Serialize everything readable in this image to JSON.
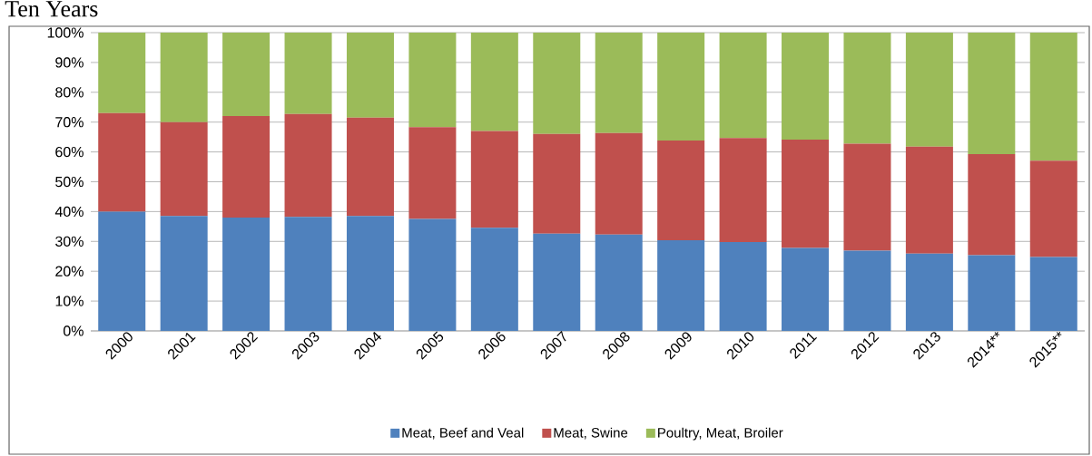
{
  "chart_data": {
    "type": "bar",
    "title": "Ten Years",
    "stacked": true,
    "categories": [
      "2000",
      "2001",
      "2002",
      "2003",
      "2004",
      "2005",
      "2006",
      "2007",
      "2008",
      "2009",
      "2010",
      "2011",
      "2012",
      "2013",
      "2014**",
      "2015**"
    ],
    "series": [
      {
        "name": "Meat, Beef and Veal",
        "color": "#4f81bd",
        "values": [
          40,
          38.5,
          38,
          38.2,
          38.5,
          37.5,
          34.6,
          32.6,
          32.3,
          30.4,
          29.8,
          27.8,
          26.9,
          25.9,
          25.4,
          24.8
        ]
      },
      {
        "name": "Meat, Swine",
        "color": "#c0504d",
        "values": [
          33,
          31.5,
          34,
          34.5,
          33,
          30.8,
          32.4,
          33.4,
          34,
          33.4,
          34.9,
          36.3,
          35.9,
          35.9,
          33.9,
          32.3
        ]
      },
      {
        "name": "Poultry, Meat, Broiler",
        "color": "#9bbb59",
        "values": [
          27,
          30,
          28,
          27.3,
          28.5,
          31.7,
          33,
          34,
          33.7,
          36.2,
          35.3,
          35.9,
          37.2,
          38.2,
          40.7,
          42.9
        ]
      }
    ],
    "ylim": [
      0,
      100
    ],
    "yticks": [
      {
        "value": 0,
        "label": "0%"
      },
      {
        "value": 10,
        "label": "10%"
      },
      {
        "value": 20,
        "label": "20%"
      },
      {
        "value": 30,
        "label": "30%"
      },
      {
        "value": 40,
        "label": "40%"
      },
      {
        "value": 50,
        "label": "50%"
      },
      {
        "value": 60,
        "label": "60%"
      },
      {
        "value": 70,
        "label": "70%"
      },
      {
        "value": 80,
        "label": "80%"
      },
      {
        "value": 90,
        "label": "90%"
      },
      {
        "value": 100,
        "label": "100%"
      }
    ],
    "grid": "y",
    "legend": "bottom"
  }
}
